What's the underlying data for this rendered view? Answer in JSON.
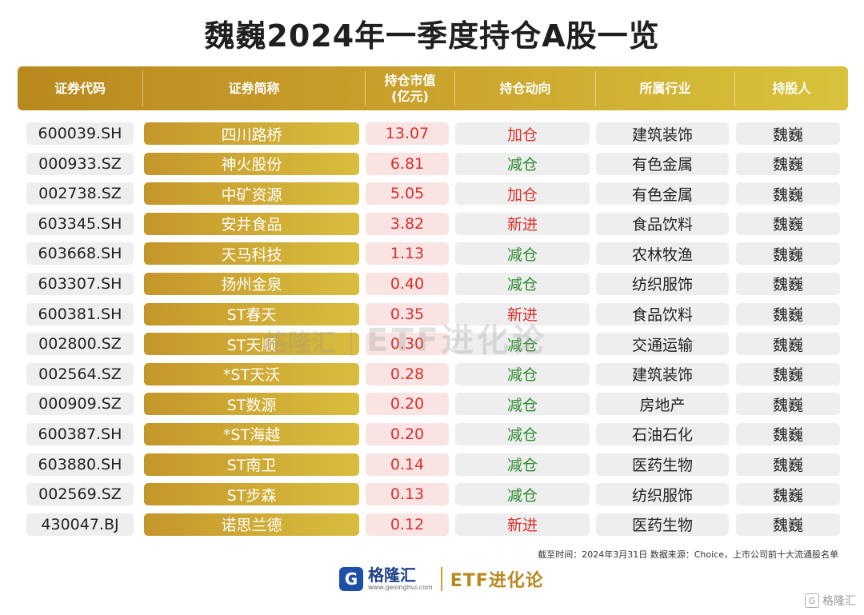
{
  "title": "魏巍2024年一季度持仓A股一览",
  "headers": {
    "code": "证券代码",
    "name": "证券简称",
    "value_line1": "持仓市值",
    "value_line2": "(亿元)",
    "action": "持仓动向",
    "industry": "所属行业",
    "holder": "持股人"
  },
  "rows": [
    {
      "code": "600039.SH",
      "name": "四川路桥",
      "value": "13.07",
      "action": "加仓",
      "industry": "建筑装饰",
      "holder": "魏巍"
    },
    {
      "code": "000933.SZ",
      "name": "神火股份",
      "value": "6.81",
      "action": "减仓",
      "industry": "有色金属",
      "holder": "魏巍"
    },
    {
      "code": "002738.SZ",
      "name": "中矿资源",
      "value": "5.05",
      "action": "加仓",
      "industry": "有色金属",
      "holder": "魏巍"
    },
    {
      "code": "603345.SH",
      "name": "安井食品",
      "value": "3.82",
      "action": "新进",
      "industry": "食品饮料",
      "holder": "魏巍"
    },
    {
      "code": "603668.SH",
      "name": "天马科技",
      "value": "1.13",
      "action": "减仓",
      "industry": "农林牧渔",
      "holder": "魏巍"
    },
    {
      "code": "603307.SH",
      "name": "扬州金泉",
      "value": "0.40",
      "action": "减仓",
      "industry": "纺织服饰",
      "holder": "魏巍"
    },
    {
      "code": "600381.SH",
      "name": "ST春天",
      "value": "0.35",
      "action": "新进",
      "industry": "食品饮料",
      "holder": "魏巍"
    },
    {
      "code": "002800.SZ",
      "name": "ST天顺",
      "value": "0.30",
      "action": "减仓",
      "industry": "交通运输",
      "holder": "魏巍"
    },
    {
      "code": "002564.SZ",
      "name": "*ST天沃",
      "value": "0.28",
      "action": "减仓",
      "industry": "建筑装饰",
      "holder": "魏巍"
    },
    {
      "code": "000909.SZ",
      "name": "ST数源",
      "value": "0.20",
      "action": "减仓",
      "industry": "房地产",
      "holder": "魏巍"
    },
    {
      "code": "600387.SH",
      "name": "*ST海越",
      "value": "0.20",
      "action": "减仓",
      "industry": "石油石化",
      "holder": "魏巍"
    },
    {
      "code": "603880.SH",
      "name": "ST南卫",
      "value": "0.14",
      "action": "减仓",
      "industry": "医药生物",
      "holder": "魏巍"
    },
    {
      "code": "002569.SZ",
      "name": "ST步森",
      "value": "0.13",
      "action": "减仓",
      "industry": "纺织服饰",
      "holder": "魏巍"
    },
    {
      "code": "430047.BJ",
      "name": "诺思兰德",
      "value": "0.12",
      "action": "新进",
      "industry": "医药生物",
      "holder": "魏巍"
    }
  ],
  "watermark": {
    "logo": "格隆汇",
    "text": "ETF进化论"
  },
  "footnote": "截至时间：2024年3月31日 数据来源：Choice，上市公司前十大流通股名单",
  "brand": {
    "logo_letter": "G",
    "name": "格隆汇",
    "url": "www.gelonghui.com",
    "etf": "ETF进化论"
  },
  "corner_mark": {
    "letter": "G",
    "text": "格隆汇"
  },
  "colors": {
    "gold_start": "#b8891e",
    "gold_end": "#d8c33b",
    "red": "#d8302a",
    "green": "#2b8a2b",
    "brand_blue": "#1e4fa8"
  }
}
